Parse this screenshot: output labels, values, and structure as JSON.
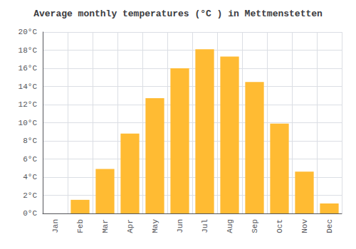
{
  "chart_data": {
    "type": "bar",
    "title": "Average monthly temperatures (°C ) in Mettmenstetten",
    "categories": [
      "Jan",
      "Feb",
      "Mar",
      "Apr",
      "May",
      "Jun",
      "Jul",
      "Aug",
      "Sep",
      "Oct",
      "Nov",
      "Dec"
    ],
    "values": [
      0.0,
      1.5,
      4.9,
      8.8,
      12.7,
      16.0,
      18.1,
      17.3,
      14.5,
      9.9,
      4.6,
      1.1
    ],
    "color": "#FFBB33",
    "ylim": [
      0,
      20
    ],
    "yticks": [
      {
        "value": 0,
        "label": "0°C"
      },
      {
        "value": 2,
        "label": "2°C"
      },
      {
        "value": 4,
        "label": "4°C"
      },
      {
        "value": 6,
        "label": "6°C"
      },
      {
        "value": 8,
        "label": "8°C"
      },
      {
        "value": 10,
        "label": "10°C"
      },
      {
        "value": 12,
        "label": "12°C"
      },
      {
        "value": 14,
        "label": "14°C"
      },
      {
        "value": 16,
        "label": "16°C"
      },
      {
        "value": 18,
        "label": "18°C"
      },
      {
        "value": 20,
        "label": "20°C"
      }
    ],
    "grid": true
  }
}
